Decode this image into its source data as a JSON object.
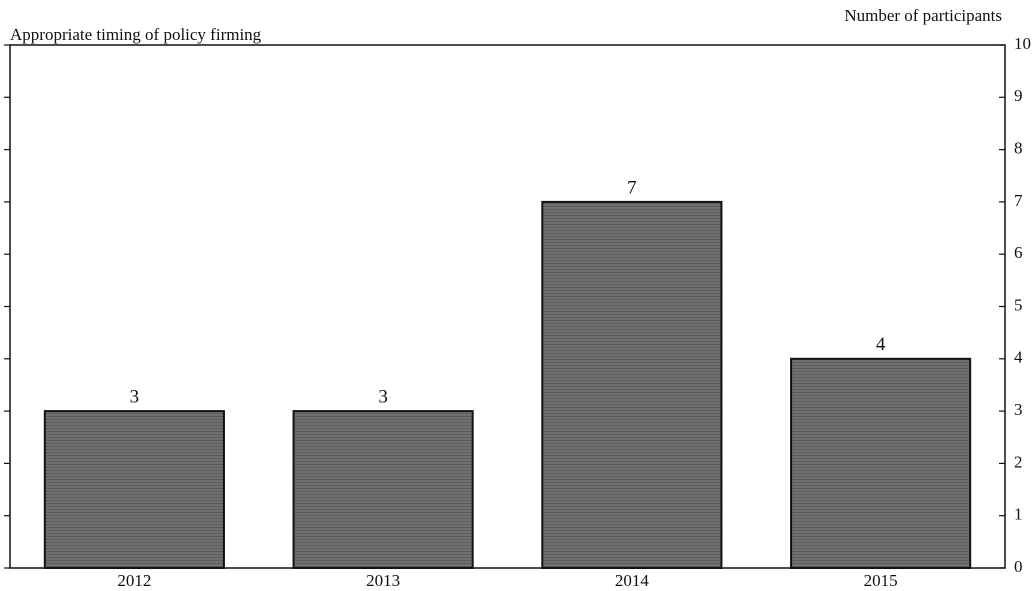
{
  "chart_data": {
    "type": "bar",
    "title": "Appropriate timing of policy firming",
    "y_label": "Number of participants",
    "categories": [
      "2012",
      "2013",
      "2014",
      "2015"
    ],
    "values": [
      3,
      3,
      7,
      4
    ],
    "color": "#5e5e5e",
    "ylim": [
      0,
      10
    ],
    "yticks": [
      0,
      1,
      2,
      3,
      4,
      5,
      6,
      7,
      8,
      9,
      10
    ],
    "grid": false
  }
}
